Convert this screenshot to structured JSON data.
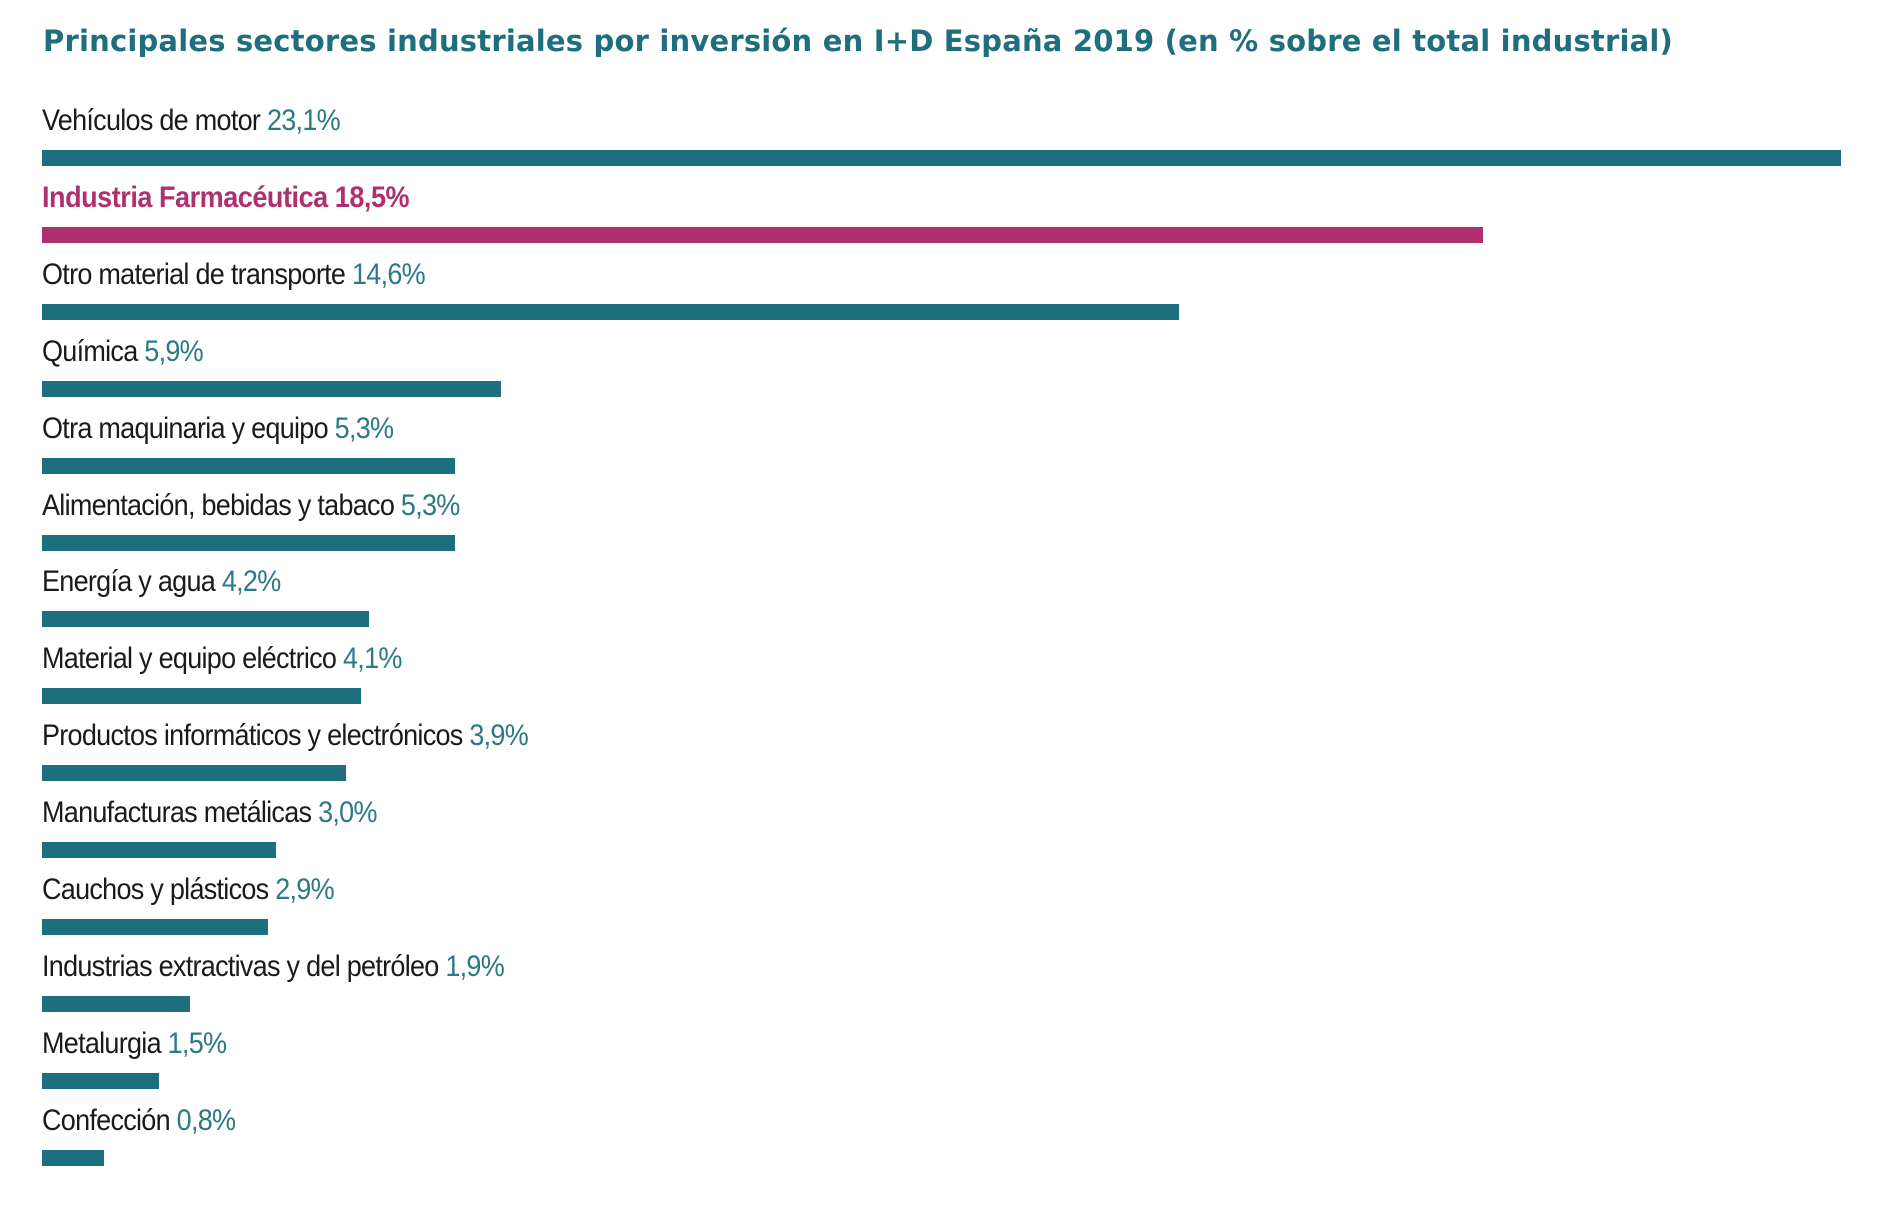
{
  "chart_data": {
    "type": "bar",
    "orientation": "horizontal",
    "title": "Principales sectores industriales por inversión en I+D España 2019 (en % sobre el total industrial)",
    "xlabel": "",
    "ylabel": "",
    "grid": false,
    "unit": "%",
    "categories": [
      "Vehículos de motor",
      "Industria Farmacéutica",
      "Otro material de transporte",
      "Química",
      "Otra maquinaria y equipo",
      "Alimentación, bebidas y tabaco",
      "Energía y agua",
      "Material y equipo eléctrico",
      "Productos informáticos y electrónicos",
      "Manufacturas metálicas",
      "Cauchos y plásticos",
      "Industrias extractivas y del petróleo",
      "Metalurgia",
      "Confección"
    ],
    "values": [
      23.1,
      18.5,
      14.6,
      5.9,
      5.3,
      5.3,
      4.2,
      4.1,
      3.9,
      3.0,
      2.9,
      1.9,
      1.5,
      0.8
    ],
    "value_labels": [
      "23,1%",
      "18,5%",
      "14,6%",
      "5,9%",
      "5,3%",
      "5,3%",
      "4,2%",
      "4,1%",
      "3,9%",
      "3,0%",
      "2,9%",
      "1,9%",
      "1,5%",
      "0,8%"
    ],
    "highlighted": "Industria Farmacéutica",
    "colors": {
      "bar": "#1e6f7d",
      "highlight": "#b0306f",
      "title": "#1f6e7e",
      "value_text": "#2b7a86"
    }
  }
}
